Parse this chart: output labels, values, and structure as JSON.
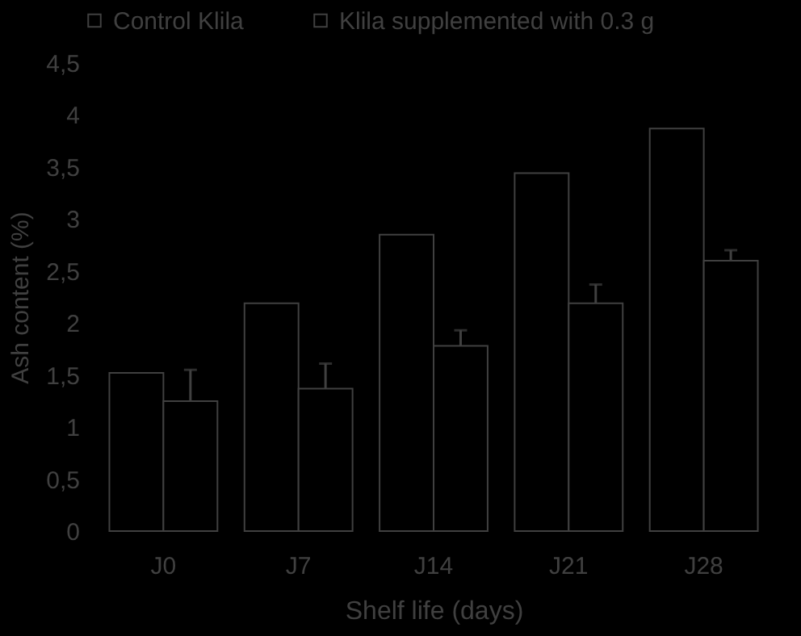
{
  "chart_data": {
    "type": "bar",
    "xlabel": "Shelf life (days)",
    "ylabel": "Ash content (%)",
    "categories": [
      "J0",
      "J7",
      "J14",
      "J21",
      "J28"
    ],
    "series": [
      {
        "name": "Control Klila",
        "color": "#000000",
        "values": [
          1.52,
          2.19,
          2.85,
          3.44,
          3.87
        ]
      },
      {
        "name": "Klila supplemented with 0.3 g",
        "color": "#000000",
        "values": [
          1.25,
          1.37,
          1.78,
          2.19,
          2.6
        ],
        "errors": [
          [
            1.25,
            1.55
          ],
          [
            1.37,
            1.61
          ],
          [
            1.78,
            1.93
          ],
          [
            2.19,
            2.37
          ],
          [
            2.6,
            2.7
          ]
        ]
      }
    ],
    "ylim": [
      0,
      4.5
    ],
    "yticks": [
      {
        "value": 0,
        "label": "0"
      },
      {
        "value": 0.5,
        "label": "0,5"
      },
      {
        "value": 1,
        "label": "1"
      },
      {
        "value": 1.5,
        "label": "1,5"
      },
      {
        "value": 2,
        "label": "2"
      },
      {
        "value": 2.5,
        "label": "2,5"
      },
      {
        "value": 3,
        "label": "3"
      },
      {
        "value": 3.5,
        "label": "3,5"
      },
      {
        "value": 4,
        "label": "4"
      },
      {
        "value": 4.5,
        "label": "4,5"
      }
    ],
    "grid": false,
    "legend": "top"
  }
}
